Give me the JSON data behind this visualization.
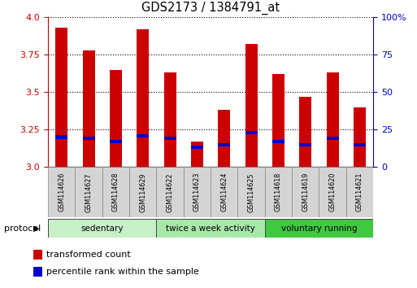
{
  "title": "GDS2173 / 1384791_at",
  "samples": [
    "GSM114626",
    "GSM114627",
    "GSM114628",
    "GSM114629",
    "GSM114622",
    "GSM114623",
    "GSM114624",
    "GSM114625",
    "GSM114618",
    "GSM114619",
    "GSM114620",
    "GSM114621"
  ],
  "red_tops": [
    3.93,
    3.78,
    3.65,
    3.92,
    3.63,
    3.17,
    3.38,
    3.82,
    3.62,
    3.47,
    3.63,
    3.4
  ],
  "blue_positions": [
    3.2,
    3.19,
    3.17,
    3.21,
    3.19,
    3.13,
    3.15,
    3.23,
    3.17,
    3.15,
    3.19,
    3.15
  ],
  "ylim_left": [
    3.0,
    4.0
  ],
  "yticks_left": [
    3.0,
    3.25,
    3.5,
    3.75,
    4.0
  ],
  "yticks_right": [
    0,
    25,
    50,
    75,
    100
  ],
  "groups": [
    {
      "label": "sedentary",
      "indices": [
        0,
        1,
        2,
        3
      ]
    },
    {
      "label": "twice a week activity",
      "indices": [
        4,
        5,
        6,
        7
      ]
    },
    {
      "label": "voluntary running",
      "indices": [
        8,
        9,
        10,
        11
      ]
    }
  ],
  "group_colors": [
    "#c8f0c8",
    "#a8e8a8",
    "#40c840"
  ],
  "bar_color": "#cc0000",
  "blue_color": "#0000cc",
  "bar_width": 0.45,
  "bg_color": "#ffffff",
  "left_axis_color": "#cc0000",
  "right_axis_color": "#0000cc",
  "legend_items": [
    {
      "label": "transformed count",
      "color": "#cc0000"
    },
    {
      "label": "percentile rank within the sample",
      "color": "#0000cc"
    }
  ],
  "figsize": [
    5.13,
    3.54
  ],
  "dpi": 100
}
